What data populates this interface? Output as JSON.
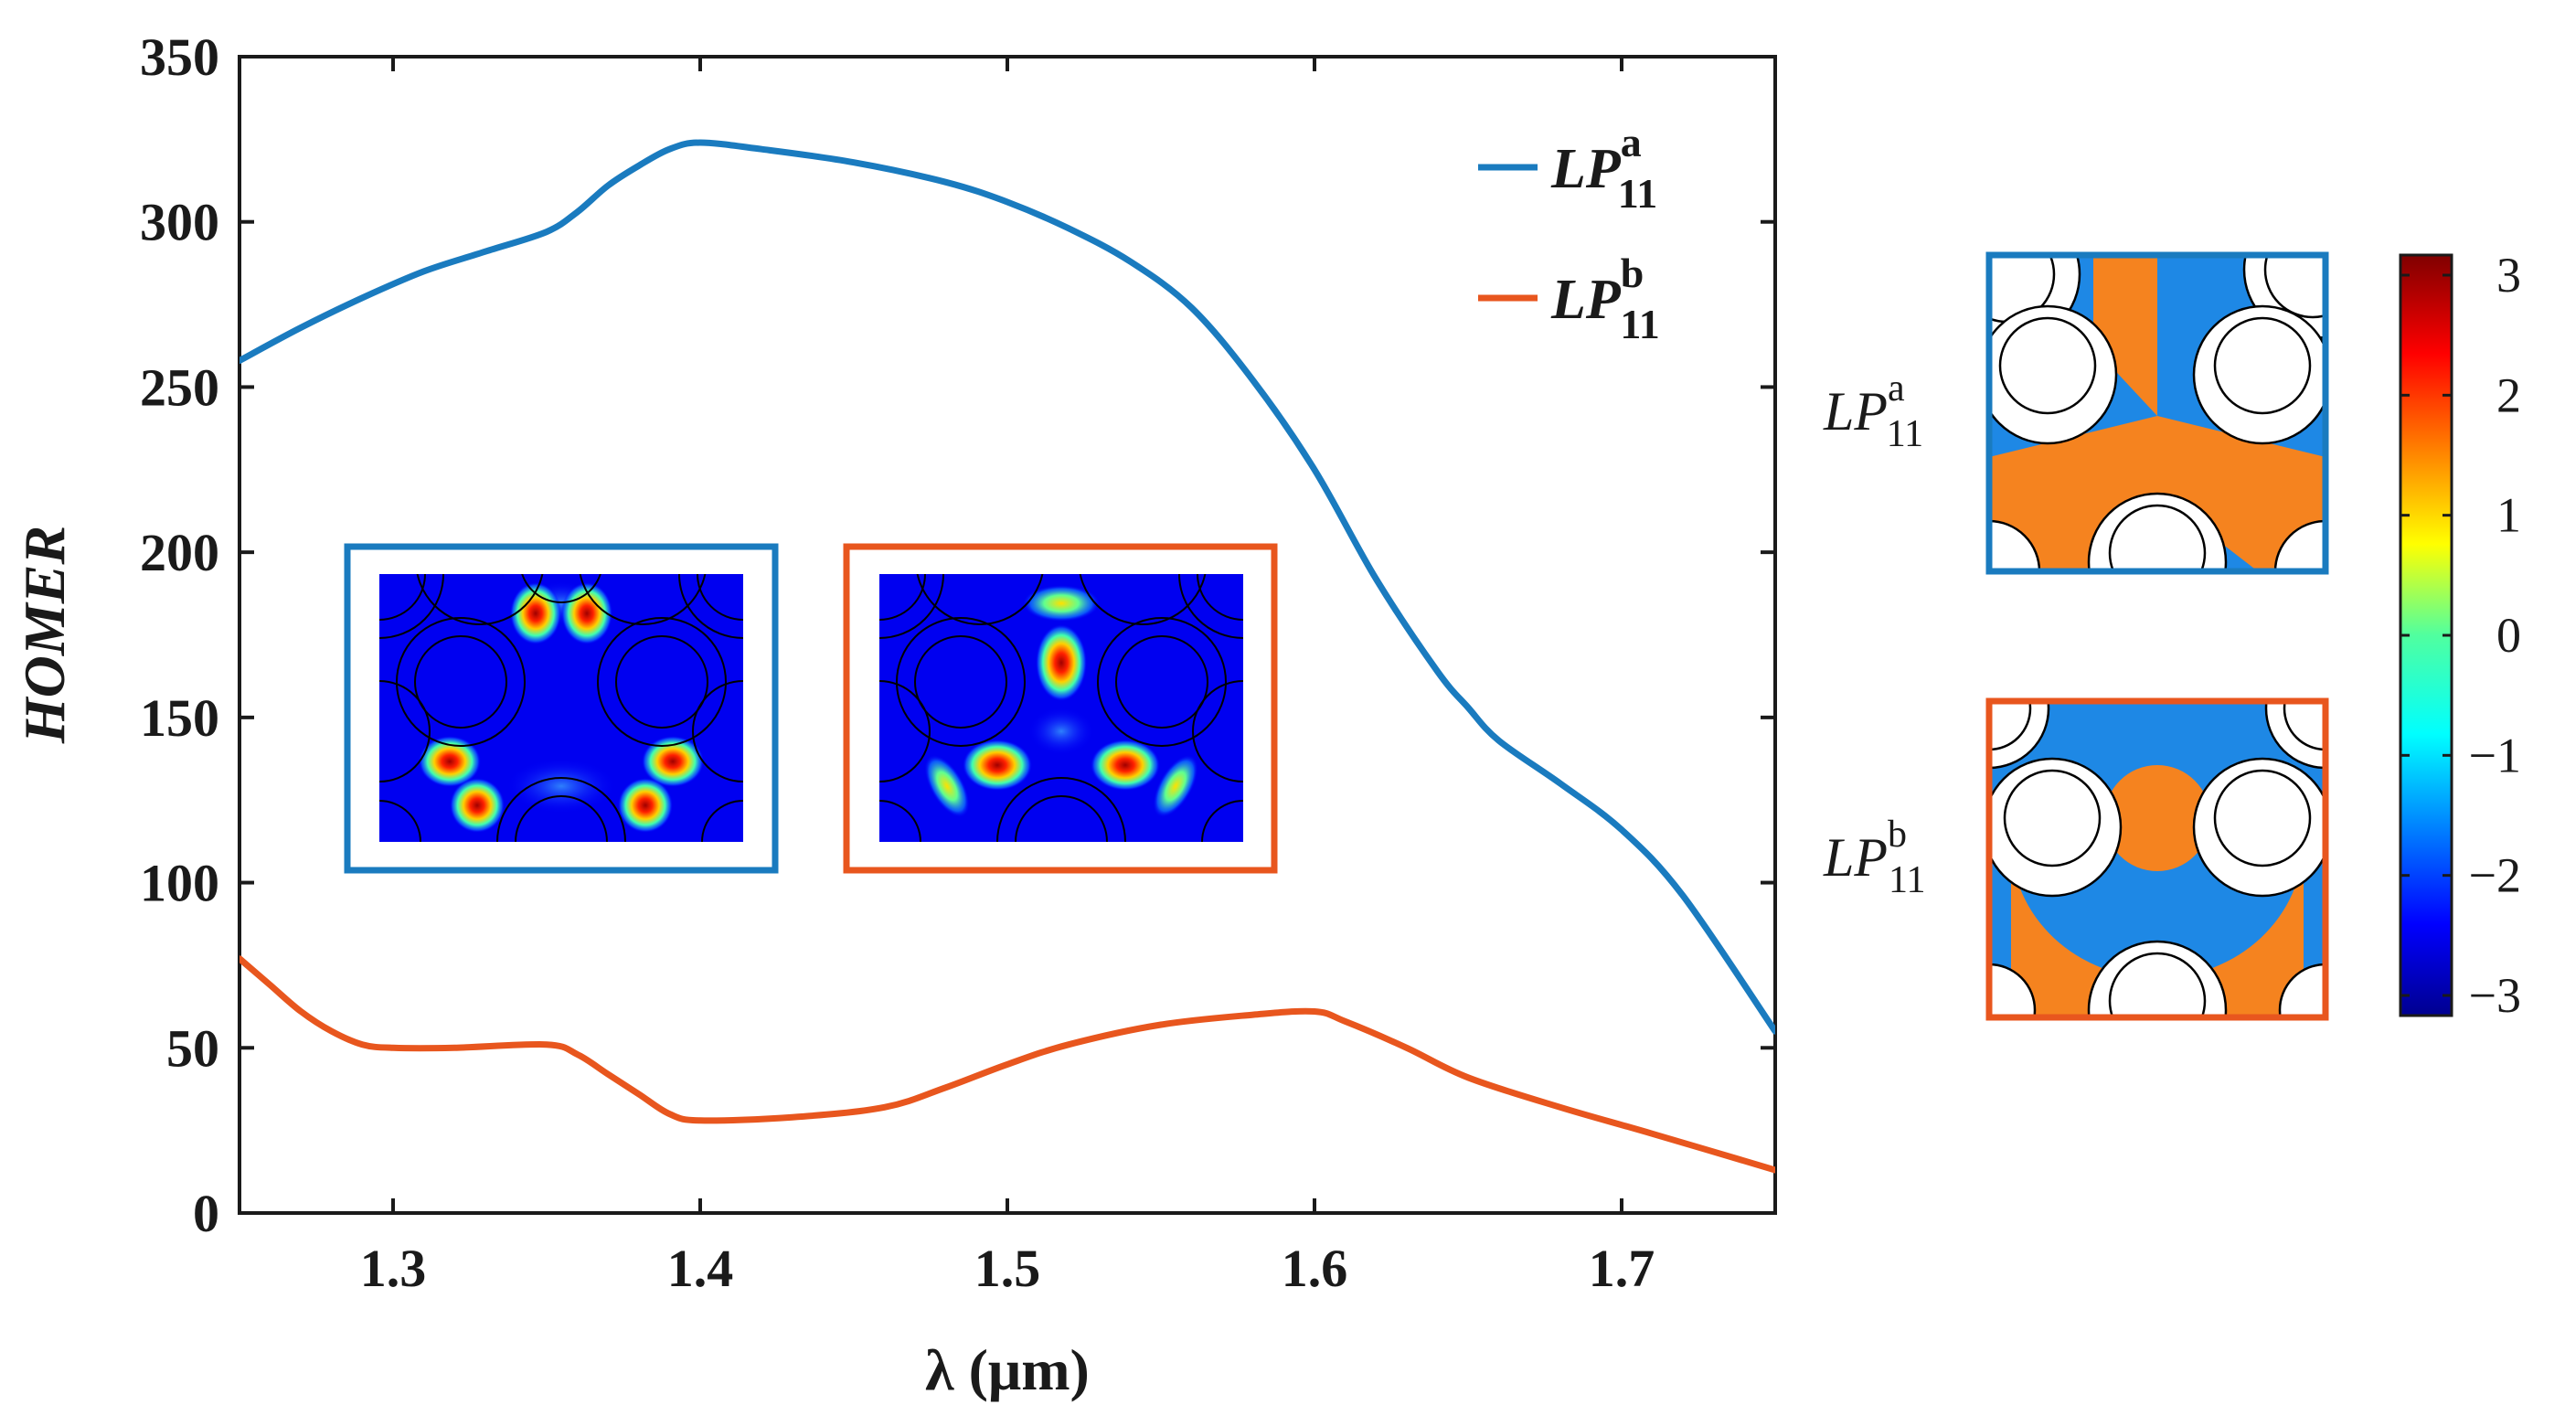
{
  "chart_data": {
    "type": "line",
    "xlabel": "λ (μm)",
    "ylabel": "HOMER",
    "xlim": [
      1.25,
      1.75
    ],
    "ylim": [
      0,
      350
    ],
    "xticks": [
      1.3,
      1.4,
      1.5,
      1.6,
      1.7
    ],
    "xtick_labels": [
      "1.3",
      "1.4",
      "1.5",
      "1.6",
      "1.7"
    ],
    "yticks": [
      0,
      50,
      100,
      150,
      200,
      250,
      300,
      350
    ],
    "ytick_labels": [
      "0",
      "50",
      "100",
      "150",
      "200",
      "250",
      "300",
      "350"
    ],
    "legend_position": "top-right",
    "series": [
      {
        "name": "LP11a",
        "label_main": "LP",
        "label_sub": "11",
        "label_sup": "a",
        "color": "#1a7bbf",
        "x": [
          1.25,
          1.27,
          1.29,
          1.31,
          1.33,
          1.35,
          1.36,
          1.37,
          1.38,
          1.39,
          1.4,
          1.42,
          1.45,
          1.48,
          1.5,
          1.52,
          1.54,
          1.56,
          1.58,
          1.6,
          1.62,
          1.64,
          1.65,
          1.66,
          1.68,
          1.7,
          1.72,
          1.75
        ],
        "y": [
          258,
          268,
          277,
          285,
          291,
          297,
          303,
          311,
          317,
          322,
          324,
          322,
          318,
          312,
          306,
          298,
          288,
          274,
          252,
          225,
          192,
          164,
          153,
          143,
          130,
          116,
          96,
          55
        ]
      },
      {
        "name": "LP11b",
        "label_main": "LP",
        "label_sub": "11",
        "label_sup": "b",
        "color": "#e8561e",
        "x": [
          1.25,
          1.26,
          1.27,
          1.28,
          1.29,
          1.3,
          1.32,
          1.35,
          1.36,
          1.37,
          1.38,
          1.39,
          1.4,
          1.43,
          1.46,
          1.48,
          1.5,
          1.52,
          1.55,
          1.58,
          1.6,
          1.61,
          1.63,
          1.65,
          1.68,
          1.71,
          1.75
        ],
        "y": [
          77,
          69,
          61,
          55,
          51,
          50,
          50,
          51,
          48,
          42,
          36,
          30,
          28,
          29,
          32,
          38,
          45,
          51,
          57,
          60,
          61,
          58,
          50,
          41,
          32,
          24,
          13
        ]
      }
    ]
  },
  "insets": [
    {
      "mode": "LP11a",
      "border_color": "#1a7bbf"
    },
    {
      "mode": "LP11b",
      "border_color": "#e8561e"
    }
  ],
  "mode_panels": [
    {
      "label_main": "LP",
      "label_sub": "11",
      "label_sup": "a",
      "border_color": "#1a7bbf"
    },
    {
      "label_main": "LP",
      "label_sub": "11",
      "label_sup": "b",
      "border_color": "#e8561e"
    }
  ],
  "colorbar": {
    "min": -3,
    "max": 3,
    "tick_labels": [
      "3",
      "2",
      "1",
      "0",
      "−1",
      "−2",
      "−3"
    ],
    "phase_colors": {
      "positive": "#f5831f",
      "negative": "#1e88e5"
    }
  }
}
